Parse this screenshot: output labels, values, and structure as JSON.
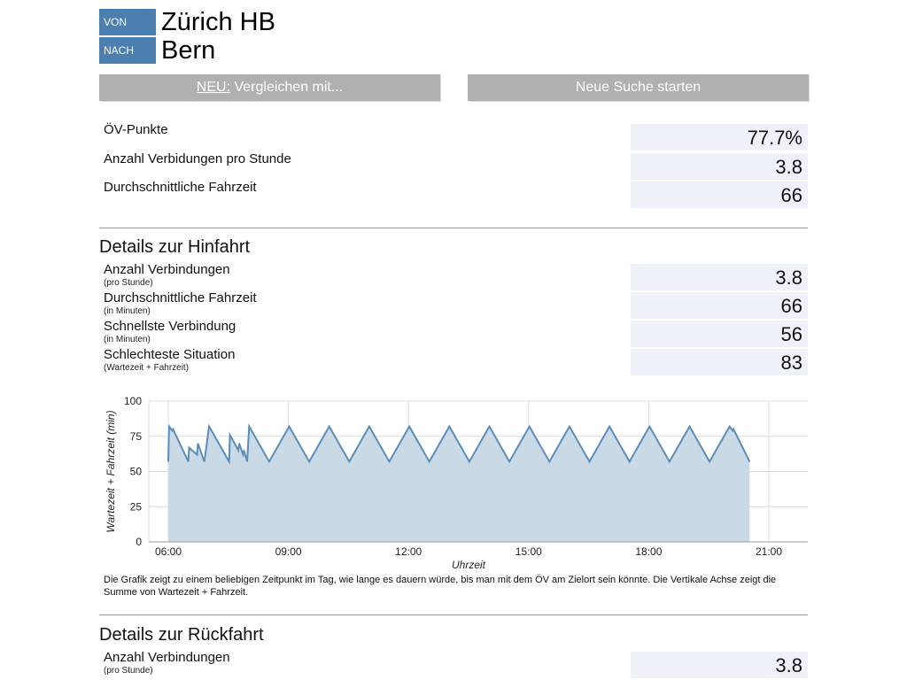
{
  "route": {
    "from_tag": "VON",
    "from": "Zürich HB",
    "to_tag": "NACH",
    "to": "Bern"
  },
  "buttons": {
    "compare_new": "NEU:",
    "compare_label": "Vergleichen mit...",
    "new_search": "Neue Suche starten"
  },
  "summary": [
    {
      "label": "ÖV-Punkte",
      "value": "77.7%"
    },
    {
      "label": "Anzahl Verbidungen pro Stunde",
      "value": "3.8"
    },
    {
      "label": "Durchschnittliche Fahrzeit",
      "value": "66"
    }
  ],
  "outbound": {
    "title": "Details zur Hinfahrt",
    "rows": [
      {
        "label": "Anzahl Verbindungen",
        "sub": "(pro Stunde)",
        "value": "3.8"
      },
      {
        "label": "Durchschnittliche Fahrzeit",
        "sub": "(in Minuten)",
        "value": "66"
      },
      {
        "label": "Schnellste Verbindung",
        "sub": "(in Minuten)",
        "value": "56"
      },
      {
        "label": "Schlechteste Situation",
        "sub": "(Wartezeit + Fahrzeit)",
        "value": "83"
      }
    ]
  },
  "chart_caption": "Die Grafik zeigt zu einem beliebigen Zeitpunkt im Tag, wie lange es dauern würde, bis man mit dem ÖV am Zielort sein könnte. Die Vertikale Achse zeigt die Summe von Wartezeit + Fahrzeit.",
  "return": {
    "title": "Details zur Rückfahrt",
    "rows": [
      {
        "label": "Anzahl Verbindungen",
        "sub": "(pro Stunde)",
        "value": "3.8"
      }
    ]
  },
  "colors": {
    "accent": "#4a7fb0",
    "button": "#b0b0b0",
    "value_bg": "#eef2f8",
    "chart_line": "#5b8db8",
    "chart_fill": "#c9dae6"
  },
  "chart_data": {
    "type": "area",
    "xlabel": "Uhrzeit",
    "ylabel": "Wartezeit + Fahrzeit (min)",
    "xlim": [
      6,
      21
    ],
    "ylim": [
      0,
      100
    ],
    "x_ticks": [
      "06:00",
      "09:00",
      "12:00",
      "15:00",
      "18:00",
      "21:00"
    ],
    "y_ticks": [
      0,
      25,
      50,
      75,
      100
    ],
    "grid": true,
    "series": [
      {
        "values": [
          [
            6.0,
            57
          ],
          [
            6.02,
            82
          ],
          [
            6.1,
            79
          ],
          [
            6.12,
            80
          ],
          [
            6.5,
            57
          ],
          [
            6.52,
            67
          ],
          [
            6.72,
            62
          ],
          [
            6.74,
            70
          ],
          [
            6.9,
            57
          ],
          [
            7.02,
            82
          ],
          [
            7.52,
            57
          ],
          [
            7.54,
            76
          ],
          [
            7.75,
            65
          ],
          [
            7.77,
            70
          ],
          [
            7.87,
            62
          ],
          [
            7.89,
            65
          ],
          [
            7.97,
            57
          ],
          [
            8.02,
            82
          ],
          [
            8.52,
            57
          ],
          [
            9.02,
            82
          ],
          [
            9.52,
            57
          ],
          [
            10.02,
            82
          ],
          [
            10.52,
            57
          ],
          [
            11.02,
            82
          ],
          [
            11.52,
            57
          ],
          [
            12.02,
            82
          ],
          [
            12.52,
            57
          ],
          [
            13.02,
            82
          ],
          [
            13.52,
            57
          ],
          [
            14.02,
            82
          ],
          [
            14.52,
            57
          ],
          [
            15.02,
            82
          ],
          [
            15.52,
            57
          ],
          [
            16.02,
            82
          ],
          [
            16.52,
            57
          ],
          [
            17.02,
            82
          ],
          [
            17.52,
            57
          ],
          [
            18.02,
            82
          ],
          [
            18.52,
            57
          ],
          [
            19.02,
            82
          ],
          [
            19.52,
            57
          ],
          [
            20.02,
            82
          ],
          [
            20.1,
            79
          ],
          [
            20.12,
            80
          ],
          [
            20.52,
            57
          ]
        ]
      }
    ]
  }
}
